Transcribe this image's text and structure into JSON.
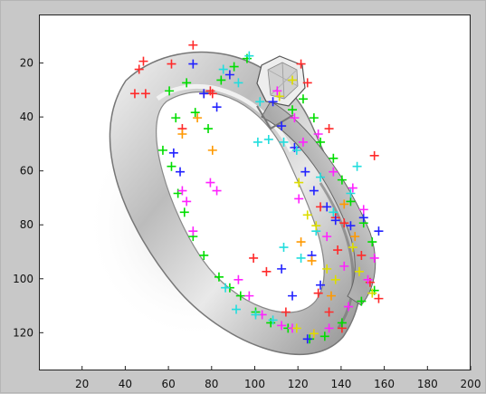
{
  "figure": {
    "background": "#c8c8c8",
    "axes_background": "#ffffff"
  },
  "chart_data": {
    "type": "scatter",
    "title": "",
    "xlabel": "",
    "ylabel": "",
    "xlim": [
      0,
      200
    ],
    "ylim": [
      134,
      2
    ],
    "y_reversed": true,
    "x_ticks": [
      20,
      40,
      60,
      80,
      100,
      120,
      140,
      160,
      180,
      200
    ],
    "y_ticks": [
      20,
      40,
      60,
      80,
      100,
      120
    ],
    "x_tick_labels": [
      "20",
      "40",
      "60",
      "80",
      "100",
      "120",
      "140",
      "160",
      "180",
      "200"
    ],
    "y_tick_labels": [
      "20",
      "40",
      "60",
      "80",
      "100",
      "120"
    ],
    "grid": false,
    "legend": "none",
    "series": [
      {
        "color": "#ff2a2a",
        "points": [
          [
            44,
            31
          ],
          [
            46,
            22
          ],
          [
            48,
            19
          ],
          [
            49,
            31
          ],
          [
            61,
            20
          ],
          [
            66,
            44
          ],
          [
            71,
            13
          ],
          [
            76,
            31
          ],
          [
            79,
            30
          ],
          [
            80,
            31
          ],
          [
            121,
            20
          ],
          [
            124,
            27
          ],
          [
            134,
            44
          ],
          [
            138,
            89
          ],
          [
            141,
            79
          ],
          [
            149,
            91
          ],
          [
            155,
            54
          ],
          [
            130,
            73
          ],
          [
            129,
            105
          ],
          [
            134,
            112
          ],
          [
            140,
            118
          ],
          [
            153,
            101
          ],
          [
            157,
            107
          ],
          [
            137,
            77
          ],
          [
            99,
            92
          ],
          [
            105,
            97
          ],
          [
            114,
            112
          ]
        ]
      },
      {
        "color": "#00dd00",
        "points": [
          [
            57,
            52
          ],
          [
            61,
            58
          ],
          [
            64,
            68
          ],
          [
            67,
            75
          ],
          [
            71,
            84
          ],
          [
            76,
            91
          ],
          [
            83,
            99
          ],
          [
            88,
            103
          ],
          [
            93,
            106
          ],
          [
            100,
            112
          ],
          [
            107,
            116
          ],
          [
            115,
            118
          ],
          [
            125,
            122
          ],
          [
            132,
            121
          ],
          [
            140,
            116
          ],
          [
            149,
            108
          ],
          [
            155,
            104
          ],
          [
            60,
            30
          ],
          [
            63,
            40
          ],
          [
            68,
            27
          ],
          [
            72,
            38
          ],
          [
            78,
            44
          ],
          [
            84,
            26
          ],
          [
            90,
            21
          ],
          [
            96,
            18
          ],
          [
            117,
            37
          ],
          [
            122,
            33
          ],
          [
            127,
            40
          ],
          [
            130,
            49
          ],
          [
            136,
            55
          ],
          [
            140,
            63
          ],
          [
            144,
            71
          ],
          [
            150,
            79
          ],
          [
            154,
            86
          ]
        ]
      },
      {
        "color": "#2222ff",
        "points": [
          [
            62,
            53
          ],
          [
            65,
            60
          ],
          [
            71,
            20
          ],
          [
            76,
            31
          ],
          [
            82,
            36
          ],
          [
            88,
            24
          ],
          [
            108,
            34
          ],
          [
            112,
            43
          ],
          [
            118,
            51
          ],
          [
            123,
            60
          ],
          [
            127,
            67
          ],
          [
            133,
            73
          ],
          [
            137,
            78
          ],
          [
            144,
            80
          ],
          [
            150,
            77
          ],
          [
            157,
            82
          ],
          [
            130,
            102
          ],
          [
            124,
            122
          ],
          [
            117,
            106
          ],
          [
            112,
            96
          ],
          [
            126,
            91
          ]
        ]
      },
      {
        "color": "#ff22ff",
        "points": [
          [
            66,
            67
          ],
          [
            68,
            71
          ],
          [
            71,
            82
          ],
          [
            79,
            64
          ],
          [
            82,
            67
          ],
          [
            92,
            100
          ],
          [
            97,
            106
          ],
          [
            103,
            113
          ],
          [
            112,
            117
          ],
          [
            117,
            118
          ],
          [
            127,
            120
          ],
          [
            134,
            118
          ],
          [
            143,
            110
          ],
          [
            152,
            100
          ],
          [
            155,
            92
          ],
          [
            110,
            30
          ],
          [
            118,
            40
          ],
          [
            122,
            49
          ],
          [
            129,
            46
          ],
          [
            136,
            60
          ],
          [
            145,
            66
          ],
          [
            150,
            74
          ],
          [
            120,
            70
          ],
          [
            133,
            84
          ],
          [
            141,
            95
          ]
        ]
      },
      {
        "color": "#22dddd",
        "points": [
          [
            86,
            103
          ],
          [
            91,
            111
          ],
          [
            100,
            113
          ],
          [
            108,
            115
          ],
          [
            113,
            88
          ],
          [
            121,
            92
          ],
          [
            128,
            82
          ],
          [
            136,
            75
          ],
          [
            144,
            68
          ],
          [
            147,
            58
          ],
          [
            101,
            49
          ],
          [
            106,
            48
          ],
          [
            113,
            49
          ],
          [
            119,
            52
          ],
          [
            130,
            62
          ],
          [
            85,
            22
          ],
          [
            92,
            27
          ],
          [
            97,
            17
          ],
          [
            102,
            34
          ]
        ]
      },
      {
        "color": "#dddd00",
        "points": [
          [
            111,
            32
          ],
          [
            117,
            26
          ],
          [
            120,
            64
          ],
          [
            124,
            76
          ],
          [
            128,
            80
          ],
          [
            133,
            96
          ],
          [
            137,
            100
          ],
          [
            145,
            88
          ],
          [
            148,
            97
          ],
          [
            154,
            105
          ],
          [
            119,
            118
          ],
          [
            127,
            120
          ]
        ]
      },
      {
        "color": "#ff9900",
        "points": [
          [
            66,
            46
          ],
          [
            73,
            40
          ],
          [
            80,
            52
          ],
          [
            121,
            86
          ],
          [
            126,
            93
          ],
          [
            135,
            106
          ],
          [
            141,
            72
          ],
          [
            146,
            84
          ]
        ]
      }
    ]
  }
}
